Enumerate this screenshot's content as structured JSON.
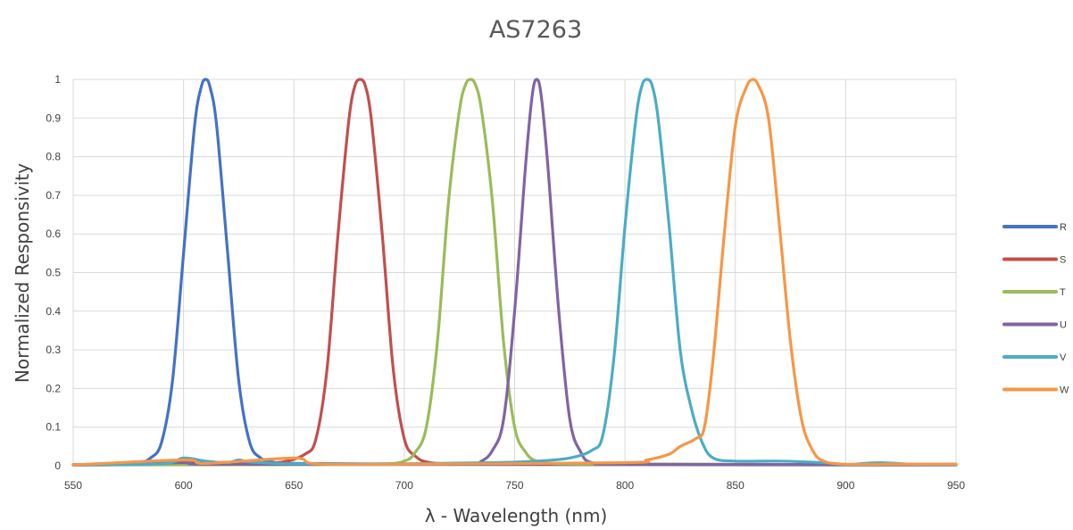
{
  "chart_data": {
    "type": "line",
    "title": "AS7263",
    "xlabel": "λ - Wavelength (nm)",
    "ylabel": "Normalized Responsivity",
    "xlim": [
      550,
      950
    ],
    "ylim": [
      0,
      1
    ],
    "x_ticks": [
      550,
      600,
      650,
      700,
      750,
      800,
      850,
      900,
      950
    ],
    "y_ticks": [
      0,
      0.1,
      0.2,
      0.3,
      0.4,
      0.5,
      0.6,
      0.7,
      0.8,
      0.9,
      1
    ],
    "y_tick_labels": [
      "0",
      "0.1",
      "0.2",
      "0.3",
      "0.4",
      "0.5",
      "0.6",
      "0.7",
      "0.8",
      "0.9",
      "1"
    ],
    "grid": true,
    "legend_position": "right",
    "series": [
      {
        "name": "R",
        "color": "#4472C4",
        "points": [
          [
            550,
            0.002
          ],
          [
            570,
            0.003
          ],
          [
            580,
            0.008
          ],
          [
            585,
            0.02
          ],
          [
            590,
            0.06
          ],
          [
            595,
            0.22
          ],
          [
            600,
            0.55
          ],
          [
            605,
            0.88
          ],
          [
            608,
            0.98
          ],
          [
            610,
            1.0
          ],
          [
            612,
            0.98
          ],
          [
            615,
            0.88
          ],
          [
            620,
            0.55
          ],
          [
            625,
            0.22
          ],
          [
            630,
            0.06
          ],
          [
            635,
            0.02
          ],
          [
            640,
            0.01
          ],
          [
            650,
            0.006
          ],
          [
            700,
            0.004
          ],
          [
            800,
            0.003
          ],
          [
            900,
            0.002
          ],
          [
            950,
            0.002
          ]
        ]
      },
      {
        "name": "S",
        "color": "#C0504D",
        "points": [
          [
            550,
            0.003
          ],
          [
            590,
            0.004
          ],
          [
            600,
            0.01
          ],
          [
            610,
            0.006
          ],
          [
            630,
            0.006
          ],
          [
            645,
            0.01
          ],
          [
            655,
            0.03
          ],
          [
            660,
            0.07
          ],
          [
            665,
            0.25
          ],
          [
            670,
            0.6
          ],
          [
            675,
            0.9
          ],
          [
            678,
            0.99
          ],
          [
            680,
            1.0
          ],
          [
            682,
            0.99
          ],
          [
            685,
            0.9
          ],
          [
            690,
            0.6
          ],
          [
            695,
            0.25
          ],
          [
            700,
            0.07
          ],
          [
            705,
            0.025
          ],
          [
            712,
            0.008
          ],
          [
            730,
            0.005
          ],
          [
            800,
            0.004
          ],
          [
            900,
            0.003
          ],
          [
            950,
            0.004
          ]
        ]
      },
      {
        "name": "T",
        "color": "#9BBB59",
        "points": [
          [
            550,
            0.002
          ],
          [
            650,
            0.003
          ],
          [
            690,
            0.005
          ],
          [
            700,
            0.012
          ],
          [
            705,
            0.035
          ],
          [
            710,
            0.1
          ],
          [
            715,
            0.32
          ],
          [
            720,
            0.68
          ],
          [
            725,
            0.92
          ],
          [
            728,
            0.99
          ],
          [
            730,
            1.0
          ],
          [
            732,
            0.99
          ],
          [
            735,
            0.92
          ],
          [
            740,
            0.68
          ],
          [
            745,
            0.32
          ],
          [
            750,
            0.1
          ],
          [
            755,
            0.035
          ],
          [
            760,
            0.012
          ],
          [
            770,
            0.005
          ],
          [
            800,
            0.004
          ],
          [
            900,
            0.003
          ],
          [
            950,
            0.003
          ]
        ]
      },
      {
        "name": "U",
        "color": "#8064A2",
        "points": [
          [
            550,
            0.002
          ],
          [
            600,
            0.008
          ],
          [
            610,
            0.004
          ],
          [
            700,
            0.004
          ],
          [
            730,
            0.006
          ],
          [
            735,
            0.012
          ],
          [
            740,
            0.04
          ],
          [
            745,
            0.12
          ],
          [
            750,
            0.4
          ],
          [
            755,
            0.78
          ],
          [
            758,
            0.96
          ],
          [
            760,
            1.0
          ],
          [
            762,
            0.96
          ],
          [
            765,
            0.78
          ],
          [
            770,
            0.4
          ],
          [
            775,
            0.12
          ],
          [
            780,
            0.035
          ],
          [
            785,
            0.008
          ],
          [
            800,
            0.004
          ],
          [
            900,
            0.003
          ],
          [
            950,
            0.003
          ]
        ]
      },
      {
        "name": "V",
        "color": "#4BACC6",
        "points": [
          [
            550,
            0.002
          ],
          [
            590,
            0.005
          ],
          [
            600,
            0.02
          ],
          [
            610,
            0.012
          ],
          [
            620,
            0.008
          ],
          [
            625,
            0.015
          ],
          [
            630,
            0.01
          ],
          [
            650,
            0.005
          ],
          [
            700,
            0.005
          ],
          [
            740,
            0.008
          ],
          [
            760,
            0.012
          ],
          [
            775,
            0.02
          ],
          [
            785,
            0.04
          ],
          [
            790,
            0.08
          ],
          [
            795,
            0.28
          ],
          [
            800,
            0.62
          ],
          [
            805,
            0.9
          ],
          [
            808,
            0.99
          ],
          [
            810,
            1.0
          ],
          [
            812,
            0.99
          ],
          [
            815,
            0.9
          ],
          [
            820,
            0.62
          ],
          [
            825,
            0.3
          ],
          [
            830,
            0.15
          ],
          [
            835,
            0.06
          ],
          [
            840,
            0.02
          ],
          [
            850,
            0.012
          ],
          [
            870,
            0.012
          ],
          [
            890,
            0.008
          ],
          [
            900,
            0.003
          ],
          [
            915,
            0.008
          ],
          [
            930,
            0.004
          ],
          [
            950,
            0.003
          ]
        ]
      },
      {
        "name": "W",
        "color": "#F79646",
        "points": [
          [
            550,
            0.002
          ],
          [
            600,
            0.015
          ],
          [
            610,
            0.006
          ],
          [
            650,
            0.02
          ],
          [
            660,
            0.005
          ],
          [
            700,
            0.004
          ],
          [
            800,
            0.008
          ],
          [
            810,
            0.015
          ],
          [
            820,
            0.03
          ],
          [
            825,
            0.05
          ],
          [
            832,
            0.07
          ],
          [
            836,
            0.1
          ],
          [
            840,
            0.28
          ],
          [
            845,
            0.6
          ],
          [
            850,
            0.88
          ],
          [
            855,
            0.98
          ],
          [
            858,
            1.0
          ],
          [
            860,
            0.99
          ],
          [
            865,
            0.9
          ],
          [
            870,
            0.62
          ],
          [
            875,
            0.32
          ],
          [
            880,
            0.12
          ],
          [
            885,
            0.04
          ],
          [
            890,
            0.012
          ],
          [
            900,
            0.004
          ],
          [
            920,
            0.004
          ],
          [
            950,
            0.004
          ]
        ]
      }
    ]
  }
}
